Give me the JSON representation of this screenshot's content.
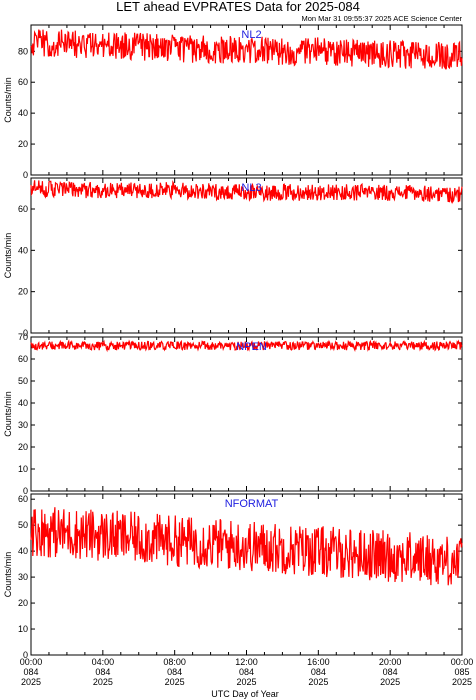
{
  "title": "LET ahead EVPRATES Data for 2025-084",
  "subtitle": "Mon Mar 31 09:55:37 2025 ACE Science Center",
  "xlabel": "UTC Day of Year",
  "x_ticks": [
    {
      "time": "00:00",
      "doy": "084",
      "year": "2025"
    },
    {
      "time": "04:00",
      "doy": "084",
      "year": "2025"
    },
    {
      "time": "08:00",
      "doy": "084",
      "year": "2025"
    },
    {
      "time": "12:00",
      "doy": "084",
      "year": "2025"
    },
    {
      "time": "16:00",
      "doy": "084",
      "year": "2025"
    },
    {
      "time": "20:00",
      "doy": "084",
      "year": "2025"
    },
    {
      "time": "00:00",
      "doy": "085",
      "year": "2025"
    }
  ],
  "colors": {
    "series": "#ff0000",
    "label": "#2020e0",
    "axis": "#000000"
  },
  "chart_data": [
    {
      "type": "line",
      "series": [
        {
          "name": "NL2"
        }
      ],
      "ylabel": "Counts/min",
      "xlim": [
        0,
        24
      ],
      "x_unit": "hours UTC",
      "ylim": [
        0,
        97
      ],
      "yticks": [
        0,
        20,
        40,
        60,
        80
      ],
      "x": [
        0,
        2,
        4,
        6,
        8,
        10,
        12,
        14,
        16,
        18,
        20,
        22,
        24
      ],
      "values": [
        86,
        85,
        84,
        83,
        82,
        81,
        81,
        80,
        80,
        79,
        78,
        77,
        77
      ],
      "noise_range": 9
    },
    {
      "type": "line",
      "series": [
        {
          "name": "NL3"
        }
      ],
      "ylabel": "Counts/min",
      "xlim": [
        0,
        24
      ],
      "x_unit": "hours UTC",
      "ylim": [
        0,
        75
      ],
      "yticks": [
        0,
        20,
        40,
        60
      ],
      "x": [
        0,
        4,
        8,
        12,
        16,
        20,
        24
      ],
      "values": [
        70,
        69,
        69,
        68,
        68,
        68,
        67
      ],
      "noise_range": 4
    },
    {
      "type": "line",
      "series": [
        {
          "name": "NPEN"
        }
      ],
      "ylabel": "Counts/min",
      "xlim": [
        0,
        24
      ],
      "x_unit": "hours UTC",
      "ylim": [
        0,
        70
      ],
      "yticks": [
        0,
        10,
        20,
        30,
        40,
        50,
        60,
        70
      ],
      "x": [
        0,
        4,
        8,
        12,
        16,
        20,
        24
      ],
      "values": [
        66,
        66,
        66,
        66,
        66,
        66,
        66
      ],
      "noise_range": 2
    },
    {
      "type": "line",
      "series": [
        {
          "name": "NFORMAT"
        }
      ],
      "ylabel": "Counts/min",
      "xlim": [
        0,
        24
      ],
      "x_unit": "hours UTC",
      "ylim": [
        0,
        62
      ],
      "yticks": [
        0,
        10,
        20,
        30,
        40,
        50,
        60
      ],
      "x": [
        0,
        2,
        4,
        6,
        8,
        10,
        12,
        14,
        16,
        18,
        20,
        22,
        24
      ],
      "values": [
        48,
        47,
        46,
        45,
        44,
        43,
        42,
        41,
        40,
        39,
        38,
        37,
        36
      ],
      "noise_range": 10
    }
  ]
}
